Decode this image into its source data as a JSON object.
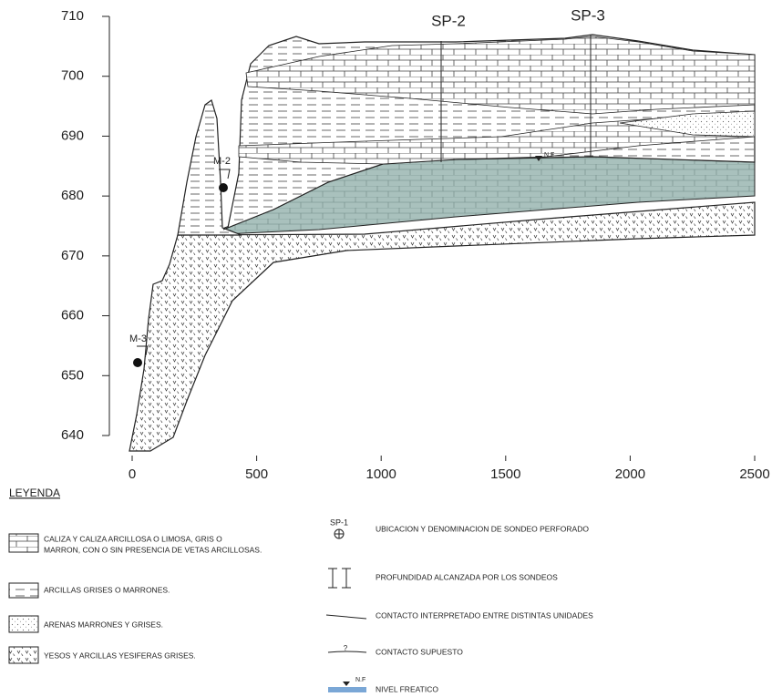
{
  "section": {
    "y_ticks": [
      640,
      650,
      660,
      670,
      680,
      690,
      700,
      710
    ],
    "x_ticks": [
      0,
      500,
      1000,
      1500,
      2000,
      2500
    ],
    "boreholes": [
      {
        "label": "SP-2"
      },
      {
        "label": "SP-3"
      }
    ],
    "samples": [
      {
        "label": "M-2"
      },
      {
        "label": "M-3"
      }
    ],
    "water_table_label": "N.F"
  },
  "legend": {
    "title": "LEYENDA",
    "units": [
      {
        "lines": [
          "CALIZA Y CALIZA ARCILLOSA O LIMOSA, GRIS O",
          "MARRON, CON O SIN PRESENCIA DE VETAS ARCILLOSAS."
        ]
      },
      {
        "lines": [
          "ARCILLAS GRISES O MARRONES."
        ]
      },
      {
        "lines": [
          "ARENAS MARRONES Y GRISES."
        ]
      },
      {
        "lines": [
          "YESOS Y ARCILLAS YESIFERAS GRISES."
        ]
      }
    ],
    "symbols": [
      {
        "mark_label": "SP-1",
        "text": "UBICACION Y DENOMINACION DE SONDEO PERFORADO"
      },
      {
        "text": "PROFUNDIDAD ALCANZADA POR LOS SONDEOS"
      },
      {
        "text": "CONTACTO INTERPRETADO ENTRE DISTINTAS UNIDADES"
      },
      {
        "mark_label": "?",
        "text": "CONTACTO SUPUESTO"
      },
      {
        "mark_label": "N.F",
        "text": "NIVEL FREATICO"
      }
    ]
  }
}
